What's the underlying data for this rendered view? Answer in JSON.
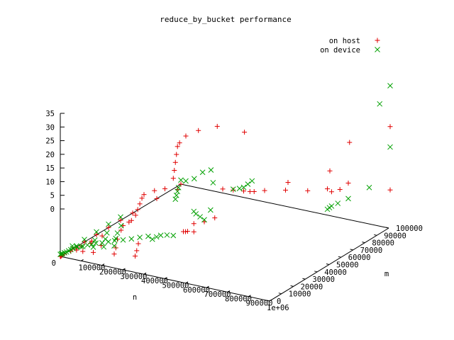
{
  "chart_data": {
    "type": "scatter",
    "dimensions": 3,
    "title": "reduce_by_bucket performance",
    "xlabel": "n",
    "ylabel": "m",
    "zlabel": "",
    "xlim": [
      0,
      1000000
    ],
    "ylim": [
      0,
      100000
    ],
    "zlim": [
      0,
      35
    ],
    "x_ticks": [
      "0",
      "100000",
      "200000",
      "300000",
      "400000",
      "500000",
      "600000",
      "700000",
      "800000",
      "900000",
      "1e+06"
    ],
    "y_ticks": [
      "0",
      "10000",
      "20000",
      "30000",
      "40000",
      "50000",
      "60000",
      "70000",
      "80000",
      "90000",
      "100000"
    ],
    "z_ticks": [
      "0",
      "5",
      "10",
      "15",
      "20",
      "25",
      "30",
      "35"
    ],
    "legend_position": "top-right",
    "series": [
      {
        "name": "on host",
        "marker": "+",
        "color": "#e00000",
        "points": [
          [
            0,
            0,
            0
          ],
          [
            2000,
            0,
            0
          ],
          [
            5000,
            0,
            0.2
          ],
          [
            10000,
            0,
            0.4
          ],
          [
            20000,
            0,
            0.8
          ],
          [
            50000,
            0,
            1.8
          ],
          [
            80000,
            0,
            3
          ],
          [
            100000,
            0,
            3.6
          ],
          [
            150000,
            0,
            5.4
          ],
          [
            200000,
            0,
            7.2
          ],
          [
            300000,
            0,
            10.8
          ],
          [
            340000,
            0,
            12.5
          ],
          [
            360000,
            0,
            14
          ],
          [
            370000,
            0,
            15.5
          ],
          [
            380000,
            0,
            17
          ],
          [
            390000,
            0,
            18.5
          ],
          [
            400000,
            0,
            19.5
          ],
          [
            450000,
            0,
            21
          ],
          [
            500000,
            0,
            22
          ],
          [
            560000,
            0,
            22.5
          ],
          [
            540000,
            0,
            25
          ],
          [
            545000,
            0,
            27
          ],
          [
            550000,
            0,
            29
          ],
          [
            555000,
            0,
            31
          ],
          [
            560000,
            0,
            33
          ],
          [
            570000,
            0,
            34
          ],
          [
            600000,
            0,
            36
          ],
          [
            660000,
            0,
            38
          ],
          [
            750000,
            0,
            40
          ],
          [
            880000,
            0,
            40
          ],
          [
            0,
            10000,
            0
          ],
          [
            20000,
            10000,
            0
          ],
          [
            50000,
            10000,
            0
          ],
          [
            100000,
            10000,
            0.3
          ],
          [
            200000,
            10000,
            1
          ],
          [
            300000,
            10000,
            1.6
          ],
          [
            0,
            20000,
            0
          ],
          [
            30000,
            20000,
            0
          ],
          [
            80000,
            20000,
            0
          ],
          [
            150000,
            20000,
            0.2
          ],
          [
            250000,
            20000,
            0.6
          ],
          [
            0,
            30000,
            0
          ],
          [
            100000,
            30000,
            0
          ],
          [
            200000,
            30000,
            0
          ],
          [
            0,
            40000,
            0
          ],
          [
            60000,
            40000,
            0
          ],
          [
            0,
            50000,
            0
          ],
          [
            40000,
            50000,
            0
          ],
          [
            0,
            60000,
            0
          ],
          [
            0,
            80000,
            0
          ],
          [
            300000,
            50000,
            0.5
          ],
          [
            310000,
            50000,
            0.6
          ],
          [
            320000,
            50000,
            0.8
          ],
          [
            350000,
            50000,
            1
          ],
          [
            350000,
            50000,
            3
          ],
          [
            400000,
            50000,
            4
          ],
          [
            450000,
            50000,
            5.5
          ],
          [
            0,
            100000,
            0
          ],
          [
            200000,
            100000,
            1
          ],
          [
            250000,
            100000,
            1.3
          ],
          [
            300000,
            100000,
            1.6
          ],
          [
            330000,
            100000,
            1.8
          ],
          [
            350000,
            100000,
            2
          ],
          [
            400000,
            100000,
            2.8
          ],
          [
            500000,
            100000,
            4
          ],
          [
            700000,
            100000,
            6.5
          ],
          [
            720000,
            100000,
            6
          ],
          [
            760000,
            100000,
            7
          ],
          [
            800000,
            100000,
            9
          ],
          [
            1000000,
            100000,
            9.5
          ],
          [
            800000,
            50000,
            18
          ],
          [
            750000,
            75000,
            11
          ],
          [
            1000000,
            50000,
            23
          ],
          [
            950000,
            75000,
            25
          ],
          [
            1000000,
            100000,
            25
          ]
        ]
      },
      {
        "name": "on device",
        "marker": "×",
        "color": "#00a000",
        "points": [
          [
            0,
            0,
            0.5
          ],
          [
            5000,
            0,
            0.7
          ],
          [
            10000,
            0,
            0.8
          ],
          [
            20000,
            0,
            1.1
          ],
          [
            30000,
            0,
            1.4
          ],
          [
            40000,
            0,
            1.8
          ],
          [
            50000,
            0,
            2.2
          ],
          [
            60000,
            0,
            2.6
          ],
          [
            80000,
            0,
            3.1
          ],
          [
            100000,
            0,
            3.5
          ],
          [
            130000,
            0,
            4.2
          ],
          [
            150000,
            0,
            4.6
          ],
          [
            170000,
            0,
            5.1
          ],
          [
            200000,
            0,
            5.5
          ],
          [
            230000,
            0,
            6.1
          ],
          [
            260000,
            0,
            6.7
          ],
          [
            300000,
            0,
            7.3
          ],
          [
            340000,
            0,
            8
          ],
          [
            380000,
            0,
            8.8
          ],
          [
            420000,
            0,
            9.5
          ],
          [
            440000,
            0,
            9
          ],
          [
            460000,
            0,
            9.8
          ],
          [
            480000,
            0,
            10.4
          ],
          [
            540000,
            0,
            11
          ],
          [
            510000,
            0,
            10.8
          ],
          [
            550000,
            0,
            20
          ],
          [
            555000,
            0,
            21
          ],
          [
            560000,
            0,
            22
          ],
          [
            565000,
            0,
            23
          ],
          [
            600000,
            0,
            25
          ],
          [
            640000,
            0,
            26
          ],
          [
            680000,
            0,
            28
          ],
          [
            720000,
            0,
            29
          ],
          [
            730000,
            0,
            26
          ],
          [
            0,
            10000,
            0.8
          ],
          [
            20000,
            10000,
            1
          ],
          [
            50000,
            10000,
            1.2
          ],
          [
            100000,
            10000,
            1.6
          ],
          [
            150000,
            10000,
            2.2
          ],
          [
            200000,
            10000,
            3
          ],
          [
            0,
            20000,
            0.6
          ],
          [
            50000,
            20000,
            1
          ],
          [
            100000,
            20000,
            1.8
          ],
          [
            150000,
            20000,
            2.5
          ],
          [
            0,
            30000,
            0.7
          ],
          [
            50000,
            30000,
            1
          ],
          [
            100000,
            30000,
            1.5
          ],
          [
            0,
            40000,
            0.8
          ],
          [
            60000,
            40000,
            1.1
          ],
          [
            0,
            50000,
            0.8
          ],
          [
            350000,
            50000,
            6
          ],
          [
            360000,
            50000,
            5.5
          ],
          [
            380000,
            50000,
            5
          ],
          [
            400000,
            50000,
            4.5
          ],
          [
            430000,
            50000,
            7.2
          ],
          [
            0,
            100000,
            1
          ],
          [
            250000,
            100000,
            1.5
          ],
          [
            280000,
            100000,
            2
          ],
          [
            300000,
            100000,
            2.5
          ],
          [
            320000,
            100000,
            3.5
          ],
          [
            340000,
            100000,
            4.5
          ],
          [
            700000,
            100000,
            1.5
          ],
          [
            710000,
            100000,
            2
          ],
          [
            720000,
            100000,
            2.5
          ],
          [
            750000,
            100000,
            3.5
          ],
          [
            800000,
            100000,
            5.2
          ],
          [
            900000,
            100000,
            9
          ],
          [
            1000000,
            100000,
            20
          ],
          [
            950000,
            100000,
            30
          ],
          [
            1000000,
            100000,
            35
          ]
        ]
      }
    ]
  }
}
